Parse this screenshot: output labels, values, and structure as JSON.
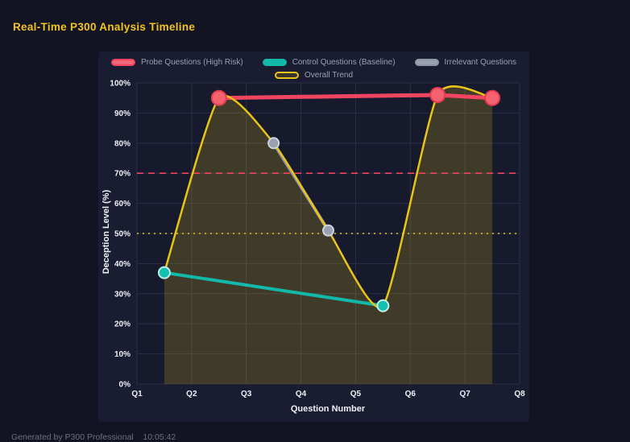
{
  "page": {
    "title": "Real-Time P300 Analysis Timeline",
    "footer": "Generated by P300 Professional    10:05:42"
  },
  "theme": {
    "page_bg": "#121424",
    "panel_bg": "#1a1d31",
    "plot_bg": "#171a2c",
    "grid_color": "#2a2e49",
    "axis_text": "#eef1f7",
    "legend_text": "#98a0b4",
    "title_color": "#f0c41c"
  },
  "chart_data": {
    "type": "line",
    "title": "Real-Time P300 Analysis Timeline",
    "xlabel": "Question Number",
    "ylabel": "Deception Level (%)",
    "xlim": [
      1,
      8
    ],
    "ylim": [
      0,
      100
    ],
    "grid": true,
    "legend_position": "top",
    "x_tick_values": [
      1,
      2,
      3,
      4,
      5,
      6,
      7,
      8
    ],
    "x_tick_labels": [
      "Q1",
      "Q2",
      "Q3",
      "Q4",
      "Q5",
      "Q6",
      "Q7",
      "Q8"
    ],
    "y_tick_values": [
      0,
      10,
      20,
      30,
      40,
      50,
      60,
      70,
      80,
      90,
      100
    ],
    "y_tick_labels": [
      "0%",
      "10%",
      "20%",
      "30%",
      "40%",
      "50%",
      "60%",
      "70%",
      "80%",
      "90%",
      "100%"
    ],
    "series": [
      {
        "name": "Probe Questions (High Risk)",
        "color": "#ef4560",
        "swatch_fill": "#f4697a",
        "point_fill": "#f4616f",
        "point_stroke": "#e63a52",
        "point_radius": 9,
        "line_width": 5,
        "legend_row": 0,
        "x": [
          2.5,
          6.5,
          7.5
        ],
        "values": [
          95,
          96,
          95
        ]
      },
      {
        "name": "Control Questions (Baseline)",
        "color": "#12b8a8",
        "swatch_fill": "#12b8a8",
        "point_fill": "#14c0b0",
        "point_stroke": "#bfeee8",
        "point_radius": 7,
        "line_width": 4,
        "legend_row": 0,
        "x": [
          1.5,
          5.5
        ],
        "values": [
          37,
          26
        ]
      },
      {
        "name": "Irrelevant Questions",
        "color": "#8f96a8",
        "swatch_fill": "#99a0b0",
        "point_fill": "#9aa1b0",
        "point_stroke": "#cfd3dc",
        "point_radius": 6.5,
        "line_width": 4,
        "legend_row": 0,
        "x": [
          3.5,
          4.5
        ],
        "values": [
          80,
          51
        ]
      },
      {
        "name": "Overall Trend",
        "color": "#e8c418",
        "swatch_fill": "rgba(232,196,24,0.15)",
        "point_radius": 0,
        "line_width": 2.5,
        "smooth": true,
        "area_fill": "rgba(232,196,24,0.20)",
        "legend_row": 1,
        "x": [
          1.5,
          2.5,
          3.5,
          4.5,
          5.5,
          6.5,
          7.5
        ],
        "values": [
          37,
          95,
          80,
          51,
          26,
          96,
          95
        ]
      }
    ],
    "reference_lines": [
      {
        "name": "high-risk-threshold-line",
        "y": 70,
        "color": "#ef4560",
        "dash": "8 6"
      },
      {
        "name": "baseline-threshold-line",
        "y": 50,
        "color": "#e8c418",
        "dash": "2 5"
      }
    ]
  }
}
